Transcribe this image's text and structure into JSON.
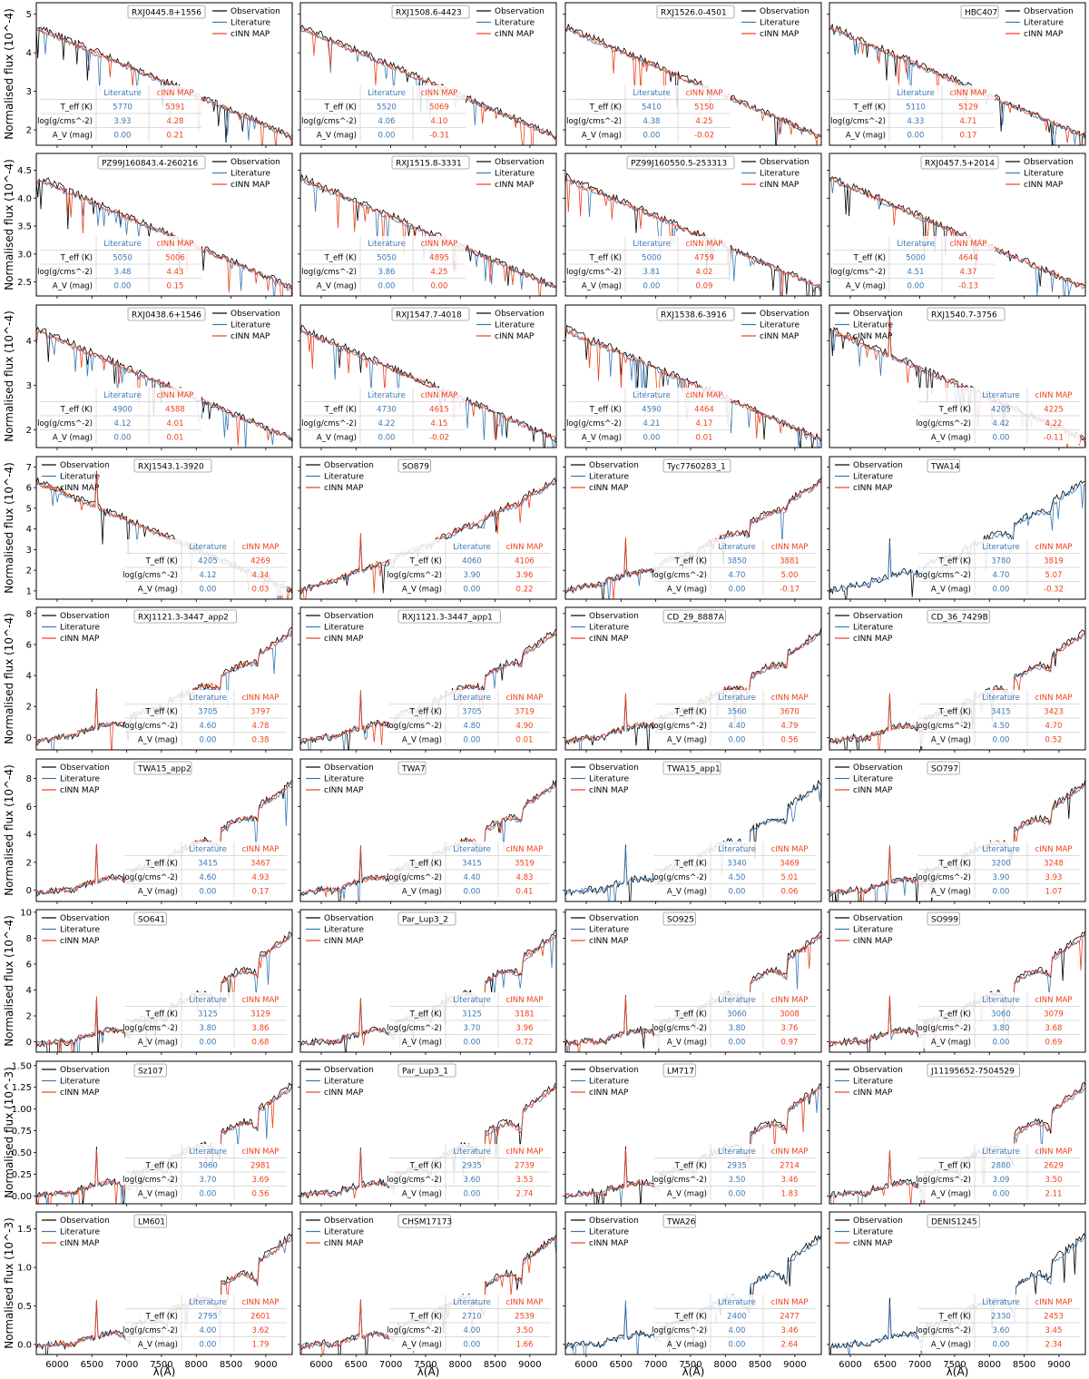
{
  "figure": {
    "ylabel": "Normalised flux",
    "xlabel": "λ(Å)",
    "legend": [
      "Observation",
      "Literature",
      "cINN MAP"
    ],
    "table_headers": [
      "",
      "Literature",
      "cINN MAP"
    ],
    "row_labels": [
      "T_eff (K)",
      "log(g/cms^-2)",
      "A_V (mag)"
    ],
    "colors": {
      "observation": "#000000",
      "literature": "#3a78b5",
      "cinn": "#f0401a",
      "axes": "#000000",
      "table_line": "#cfcfcf"
    }
  },
  "chart_data": [
    {
      "type": "line",
      "name": "RXJ0445.8+1556",
      "row": 0,
      "col": 0,
      "teff": [
        5770,
        5391
      ],
      "logg": [
        "3.93",
        "4.28"
      ],
      "av": [
        "0.00",
        "0.21"
      ]
    },
    {
      "type": "line",
      "name": "RXJ1508.6-4423",
      "row": 0,
      "col": 1,
      "teff": [
        5520,
        5069
      ],
      "logg": [
        "4.06",
        "4.10"
      ],
      "av": [
        "0.00",
        "-0.31"
      ]
    },
    {
      "type": "line",
      "name": "RXJ1526.0-4501",
      "row": 0,
      "col": 2,
      "teff": [
        5410,
        5150
      ],
      "logg": [
        "4.38",
        "4.25"
      ],
      "av": [
        "0.00",
        "-0.02"
      ]
    },
    {
      "type": "line",
      "name": "HBC407",
      "row": 0,
      "col": 3,
      "teff": [
        5110,
        5129
      ],
      "logg": [
        "4.33",
        "4.71"
      ],
      "av": [
        "0.00",
        "0.17"
      ]
    },
    {
      "type": "line",
      "name": "PZ99J160843.4-260216",
      "row": 1,
      "col": 0,
      "teff": [
        5050,
        5006
      ],
      "logg": [
        "3.48",
        "4.43"
      ],
      "av": [
        "0.00",
        "0.15"
      ]
    },
    {
      "type": "line",
      "name": "RXJ1515.8-3331",
      "row": 1,
      "col": 1,
      "teff": [
        5050,
        4895
      ],
      "logg": [
        "3.86",
        "4.25"
      ],
      "av": [
        "0.00",
        "0.00"
      ]
    },
    {
      "type": "line",
      "name": "PZ99J160550.5-253313",
      "row": 1,
      "col": 2,
      "teff": [
        5000,
        4759
      ],
      "logg": [
        "3.81",
        "4.02"
      ],
      "av": [
        "0.00",
        "0.09"
      ]
    },
    {
      "type": "line",
      "name": "RXJ0457.5+2014",
      "row": 1,
      "col": 3,
      "teff": [
        5000,
        4644
      ],
      "logg": [
        "4.51",
        "4.37"
      ],
      "av": [
        "0.00",
        "-0.13"
      ]
    },
    {
      "type": "line",
      "name": "RXJ0438.6+1546",
      "row": 2,
      "col": 0,
      "teff": [
        4900,
        4588
      ],
      "logg": [
        "4.12",
        "4.01"
      ],
      "av": [
        "0.00",
        "0.01"
      ]
    },
    {
      "type": "line",
      "name": "RXJ1547.7-4018",
      "row": 2,
      "col": 1,
      "teff": [
        4730,
        4615
      ],
      "logg": [
        "4.22",
        "4.15"
      ],
      "av": [
        "0.00",
        "-0.02"
      ]
    },
    {
      "type": "line",
      "name": "RXJ1538.6-3916",
      "row": 2,
      "col": 2,
      "teff": [
        4590,
        4464
      ],
      "logg": [
        "4.21",
        "4.17"
      ],
      "av": [
        "0.00",
        "0.01"
      ]
    },
    {
      "type": "line",
      "name": "RXJ1540.7-3756",
      "row": 2,
      "col": 3,
      "teff": [
        4205,
        4225
      ],
      "logg": [
        "4.42",
        "4.22"
      ],
      "av": [
        "0.00",
        "-0.11"
      ]
    },
    {
      "type": "line",
      "name": "RXJ1543.1-3920",
      "row": 3,
      "col": 0,
      "teff": [
        4205,
        4269
      ],
      "logg": [
        "4.12",
        "4.34"
      ],
      "av": [
        "0.00",
        "0.03"
      ]
    },
    {
      "type": "line",
      "name": "SO879",
      "row": 3,
      "col": 1,
      "teff": [
        4060,
        4106
      ],
      "logg": [
        "3.90",
        "3.96"
      ],
      "av": [
        "0.00",
        "0.22"
      ]
    },
    {
      "type": "line",
      "name": "Tyc7760283_1",
      "row": 3,
      "col": 2,
      "teff": [
        3850,
        3881
      ],
      "logg": [
        "4.70",
        "5.00"
      ],
      "av": [
        "0.00",
        "-0.17"
      ]
    },
    {
      "type": "line",
      "name": "TWA14",
      "row": 3,
      "col": 3,
      "teff": [
        3780,
        3819
      ],
      "logg": [
        "4.70",
        "5.07"
      ],
      "av": [
        "0.00",
        "-0.32"
      ]
    },
    {
      "type": "line",
      "name": "RXJ1121.3-3447_app2",
      "row": 4,
      "col": 0,
      "teff": [
        3705,
        3797
      ],
      "logg": [
        "4.60",
        "4.78"
      ],
      "av": [
        "0.00",
        "0.38"
      ]
    },
    {
      "type": "line",
      "name": "RXJ1121.3-3447_app1",
      "row": 4,
      "col": 1,
      "teff": [
        3705,
        3719
      ],
      "logg": [
        "4.80",
        "4.90"
      ],
      "av": [
        "0.00",
        "0.01"
      ]
    },
    {
      "type": "line",
      "name": "CD_29_8887A",
      "row": 4,
      "col": 2,
      "teff": [
        3560,
        3670
      ],
      "logg": [
        "4.40",
        "4.79"
      ],
      "av": [
        "0.00",
        "0.56"
      ]
    },
    {
      "type": "line",
      "name": "CD_36_7429B",
      "row": 4,
      "col": 3,
      "teff": [
        3415,
        3423
      ],
      "logg": [
        "4.50",
        "4.70"
      ],
      "av": [
        "0.00",
        "0.52"
      ]
    },
    {
      "type": "line",
      "name": "TWA15_app2",
      "row": 5,
      "col": 0,
      "teff": [
        3415,
        3467
      ],
      "logg": [
        "4.60",
        "4.93"
      ],
      "av": [
        "0.00",
        "0.17"
      ]
    },
    {
      "type": "line",
      "name": "TWA7",
      "row": 5,
      "col": 1,
      "teff": [
        3415,
        3519
      ],
      "logg": [
        "4.40",
        "4.83"
      ],
      "av": [
        "0.00",
        "0.41"
      ]
    },
    {
      "type": "line",
      "name": "TWA15_app1",
      "row": 5,
      "col": 2,
      "teff": [
        3340,
        3469
      ],
      "logg": [
        "4.50",
        "5.01"
      ],
      "av": [
        "0.00",
        "0.06"
      ]
    },
    {
      "type": "line",
      "name": "SO797",
      "row": 5,
      "col": 3,
      "teff": [
        3200,
        3248
      ],
      "logg": [
        "3.90",
        "3.93"
      ],
      "av": [
        "0.00",
        "1.07"
      ]
    },
    {
      "type": "line",
      "name": "SO641",
      "row": 6,
      "col": 0,
      "teff": [
        3125,
        3129
      ],
      "logg": [
        "3.80",
        "3.86"
      ],
      "av": [
        "0.00",
        "0.68"
      ]
    },
    {
      "type": "line",
      "name": "Par_Lup3_2",
      "row": 6,
      "col": 1,
      "teff": [
        3125,
        3181
      ],
      "logg": [
        "3.70",
        "3.96"
      ],
      "av": [
        "0.00",
        "0.72"
      ]
    },
    {
      "type": "line",
      "name": "SO925",
      "row": 6,
      "col": 2,
      "teff": [
        3060,
        3008
      ],
      "logg": [
        "3.80",
        "3.76"
      ],
      "av": [
        "0.00",
        "0.97"
      ]
    },
    {
      "type": "line",
      "name": "SO999",
      "row": 6,
      "col": 3,
      "teff": [
        3060,
        3079
      ],
      "logg": [
        "3.80",
        "3.68"
      ],
      "av": [
        "0.00",
        "0.69"
      ]
    },
    {
      "type": "line",
      "name": "Sz107",
      "row": 7,
      "col": 0,
      "teff": [
        3060,
        2981
      ],
      "logg": [
        "3.70",
        "3.69"
      ],
      "av": [
        "0.00",
        "0.56"
      ]
    },
    {
      "type": "line",
      "name": "Par_Lup3_1",
      "row": 7,
      "col": 1,
      "teff": [
        2935,
        2739
      ],
      "logg": [
        "3.60",
        "3.53"
      ],
      "av": [
        "0.00",
        "2.74"
      ]
    },
    {
      "type": "line",
      "name": "LM717",
      "row": 7,
      "col": 2,
      "teff": [
        2935,
        2714
      ],
      "logg": [
        "3.50",
        "3.46"
      ],
      "av": [
        "0.00",
        "1.83"
      ]
    },
    {
      "type": "line",
      "name": "J11195652-7504529",
      "row": 7,
      "col": 3,
      "teff": [
        2880,
        2629
      ],
      "logg": [
        "3.09",
        "3.50"
      ],
      "av": [
        "0.00",
        "2.11"
      ]
    },
    {
      "type": "line",
      "name": "LM601",
      "row": 8,
      "col": 0,
      "teff": [
        2795,
        2601
      ],
      "logg": [
        "4.00",
        "3.62"
      ],
      "av": [
        "0.00",
        "1.79"
      ]
    },
    {
      "type": "line",
      "name": "CHSM17173",
      "row": 8,
      "col": 1,
      "teff": [
        2710,
        2539
      ],
      "logg": [
        "4.00",
        "3.50"
      ],
      "av": [
        "0.00",
        "1.66"
      ]
    },
    {
      "type": "line",
      "name": "TWA26",
      "row": 8,
      "col": 2,
      "teff": [
        2400,
        2477
      ],
      "logg": [
        "4.00",
        "3.46"
      ],
      "av": [
        "0.00",
        "2.64"
      ]
    },
    {
      "type": "line",
      "name": "DENIS1245",
      "row": 8,
      "col": 3,
      "teff": [
        2330,
        2453
      ],
      "logg": [
        "3.60",
        "3.45"
      ],
      "av": [
        "0.00",
        "2.34"
      ]
    }
  ],
  "rows": [
    {
      "exp": "-4",
      "yticks": [
        "2",
        "3",
        "4",
        "5"
      ],
      "ylim": [
        1.6,
        5.3
      ]
    },
    {
      "exp": "-4",
      "yticks": [
        "2.5",
        "3.0",
        "3.5",
        "4.0",
        "4.5"
      ],
      "ylim": [
        2.25,
        4.8
      ]
    },
    {
      "exp": "-4",
      "yticks": [
        "2",
        "3",
        "4"
      ],
      "ylim": [
        1.6,
        4.8
      ]
    },
    {
      "exp": "-4",
      "yticks": [
        "1",
        "2",
        "3",
        "4",
        "5",
        "6",
        "7"
      ],
      "ylim": [
        0.6,
        7.5
      ]
    },
    {
      "exp": "-4",
      "yticks": [
        "0",
        "2",
        "4",
        "6",
        "8"
      ],
      "ylim": [
        -0.8,
        8.4
      ]
    },
    {
      "exp": "-4",
      "yticks": [
        "0",
        "2",
        "4",
        "6",
        "8"
      ],
      "ylim": [
        -0.8,
        9.4
      ]
    },
    {
      "exp": "-4",
      "yticks": [
        "0",
        "2",
        "4",
        "6",
        "8",
        "10"
      ],
      "ylim": [
        -0.8,
        10.2
      ]
    },
    {
      "exp": "-3",
      "yticks": [
        "0.00",
        "0.25",
        "0.50",
        "0.75",
        "1.00",
        "1.25",
        "1.50"
      ],
      "ylim": [
        -0.09,
        1.55
      ]
    },
    {
      "exp": "-3",
      "yticks": [
        "0.0",
        "0.5",
        "1.0",
        "1.5"
      ],
      "ylim": [
        -0.13,
        1.72
      ]
    }
  ],
  "xaxis": {
    "ticks": [
      "6000",
      "6500",
      "7000",
      "7500",
      "8000",
      "8500",
      "9000"
    ],
    "xlim": [
      5700,
      9380
    ]
  },
  "visibility": [
    [
      true,
      true,
      true,
      true
    ],
    [
      true,
      true,
      true,
      true
    ],
    [
      true,
      true,
      true,
      true
    ],
    [
      true,
      true,
      true,
      false
    ],
    [
      true,
      true,
      true,
      true
    ],
    [
      true,
      true,
      false,
      true
    ],
    [
      true,
      true,
      true,
      true
    ],
    [
      true,
      true,
      true,
      true
    ],
    [
      true,
      true,
      false,
      false
    ]
  ]
}
